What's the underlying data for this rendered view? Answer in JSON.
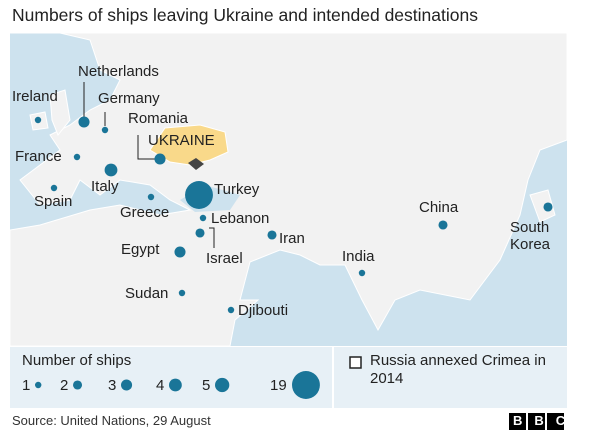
{
  "title": "Numbers of ships leaving Ukraine and intended destinations",
  "ukraine": "UKRAINE",
  "color": "#1a7598",
  "destinations": [
    {
      "name": "Ireland",
      "ships": 1
    },
    {
      "name": "Netherlands",
      "ships": 3
    },
    {
      "name": "Germany",
      "ships": 1
    },
    {
      "name": "Romania",
      "ships": 3
    },
    {
      "name": "France",
      "ships": 1
    },
    {
      "name": "Italy",
      "ships": 4
    },
    {
      "name": "Spain",
      "ships": 1
    },
    {
      "name": "Greece",
      "ships": 1
    },
    {
      "name": "Turkey",
      "ships": 19
    },
    {
      "name": "Lebanon",
      "ships": 1
    },
    {
      "name": "Israel",
      "ships": 2
    },
    {
      "name": "Egypt",
      "ships": 3
    },
    {
      "name": "Iran",
      "ships": 2
    },
    {
      "name": "Sudan",
      "ships": 1
    },
    {
      "name": "Djibouti",
      "ships": 1
    },
    {
      "name": "India",
      "ships": 1
    },
    {
      "name": "China",
      "ships": 2
    },
    {
      "name": "South Korea",
      "ships": 2
    }
  ],
  "legend": {
    "title": "Number of ships",
    "values": [
      1,
      2,
      3,
      4,
      5,
      19
    ],
    "crimea": "Russia annexed Crimea in 2014"
  },
  "source": "Source: United Nations, 29 August",
  "logo": "BBC"
}
